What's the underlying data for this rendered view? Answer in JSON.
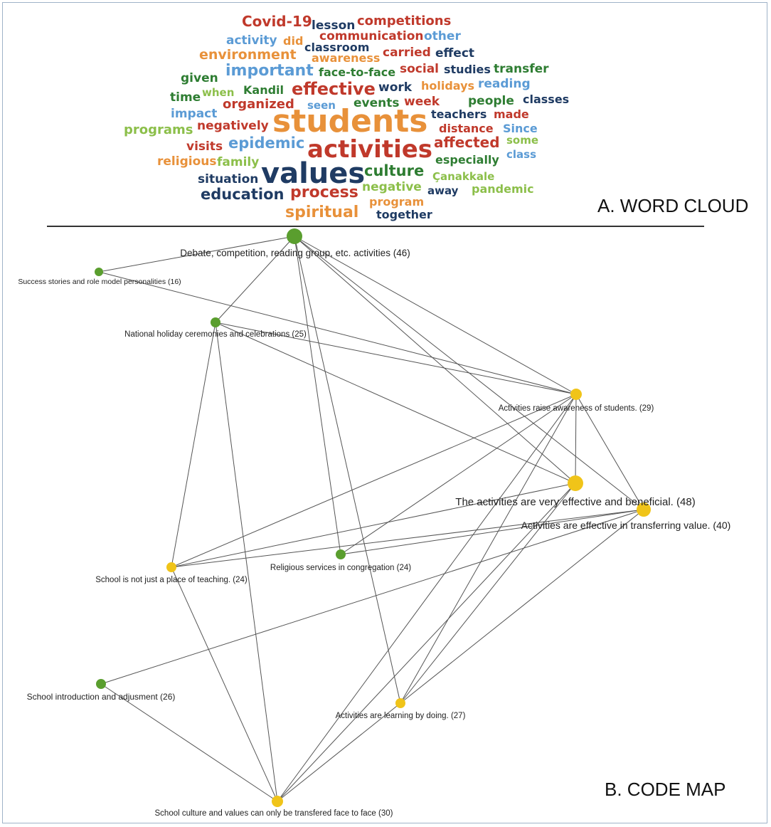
{
  "section_a_title": "A. WORD CLOUD",
  "section_b_title": "B. CODE MAP",
  "colors": {
    "red": "#c0392b",
    "orange": "#e8913a",
    "lightblue": "#5b9bd5",
    "navy": "#1f3b63",
    "green": "#2e7d32",
    "lime": "#8cbf4a",
    "node_green": "#5a9e2e",
    "node_yellow": "#f0c419",
    "edge": "#555555"
  },
  "word_cloud": [
    {
      "text": "Covid-19",
      "color": "red",
      "size": 20
    },
    {
      "text": "lesson",
      "color": "navy",
      "size": 17
    },
    {
      "text": "competitions",
      "color": "red",
      "size": 18
    },
    {
      "text": "activity",
      "color": "lightblue",
      "size": 17
    },
    {
      "text": "did",
      "color": "orange",
      "size": 16
    },
    {
      "text": "communication",
      "color": "red",
      "size": 17
    },
    {
      "text": "other",
      "color": "lightblue",
      "size": 17
    },
    {
      "text": "environment",
      "color": "orange",
      "size": 19
    },
    {
      "text": "classroom",
      "color": "navy",
      "size": 16
    },
    {
      "text": "awareness",
      "color": "orange",
      "size": 16
    },
    {
      "text": "carried",
      "color": "red",
      "size": 17
    },
    {
      "text": "effect",
      "color": "navy",
      "size": 17
    },
    {
      "text": "given",
      "color": "green",
      "size": 17
    },
    {
      "text": "important",
      "color": "lightblue",
      "size": 22
    },
    {
      "text": "face-to-face",
      "color": "green",
      "size": 16
    },
    {
      "text": "social",
      "color": "red",
      "size": 17
    },
    {
      "text": "studies",
      "color": "navy",
      "size": 16
    },
    {
      "text": "transfer",
      "color": "green",
      "size": 17
    },
    {
      "text": "time",
      "color": "green",
      "size": 17
    },
    {
      "text": "when",
      "color": "lime",
      "size": 15
    },
    {
      "text": "Kandil",
      "color": "green",
      "size": 16
    },
    {
      "text": "effective",
      "color": "red",
      "size": 24
    },
    {
      "text": "work",
      "color": "navy",
      "size": 17
    },
    {
      "text": "holidays",
      "color": "orange",
      "size": 16
    },
    {
      "text": "reading",
      "color": "lightblue",
      "size": 17
    },
    {
      "text": "seen",
      "color": "lightblue",
      "size": 15
    },
    {
      "text": "events",
      "color": "green",
      "size": 17
    },
    {
      "text": "week",
      "color": "red",
      "size": 17
    },
    {
      "text": "people",
      "color": "green",
      "size": 17
    },
    {
      "text": "classes",
      "color": "navy",
      "size": 16
    },
    {
      "text": "impact",
      "color": "lightblue",
      "size": 17
    },
    {
      "text": "organized",
      "color": "red",
      "size": 18
    },
    {
      "text": "students",
      "color": "orange",
      "size": 44
    },
    {
      "text": "teachers",
      "color": "navy",
      "size": 16
    },
    {
      "text": "made",
      "color": "red",
      "size": 16
    },
    {
      "text": "programs",
      "color": "lime",
      "size": 18
    },
    {
      "text": "negatively",
      "color": "red",
      "size": 17
    },
    {
      "text": "distance",
      "color": "red",
      "size": 16
    },
    {
      "text": "Since",
      "color": "lightblue",
      "size": 16
    },
    {
      "text": "visits",
      "color": "red",
      "size": 17
    },
    {
      "text": "epidemic",
      "color": "lightblue",
      "size": 21
    },
    {
      "text": "activities",
      "color": "red",
      "size": 34
    },
    {
      "text": "affected",
      "color": "red",
      "size": 20
    },
    {
      "text": "some",
      "color": "lime",
      "size": 15
    },
    {
      "text": "religious",
      "color": "orange",
      "size": 17
    },
    {
      "text": "family",
      "color": "lime",
      "size": 17
    },
    {
      "text": "especially",
      "color": "green",
      "size": 16
    },
    {
      "text": "class",
      "color": "lightblue",
      "size": 15
    },
    {
      "text": "situation",
      "color": "navy",
      "size": 17
    },
    {
      "text": "values",
      "color": "navy",
      "size": 40
    },
    {
      "text": "culture",
      "color": "green",
      "size": 21
    },
    {
      "text": "Çanakkale",
      "color": "lime",
      "size": 15
    },
    {
      "text": "negative",
      "color": "lime",
      "size": 17
    },
    {
      "text": "away",
      "color": "navy",
      "size": 15
    },
    {
      "text": "pandemic",
      "color": "lime",
      "size": 16
    },
    {
      "text": "education",
      "color": "navy",
      "size": 21
    },
    {
      "text": "process",
      "color": "red",
      "size": 22
    },
    {
      "text": "program",
      "color": "orange",
      "size": 16
    },
    {
      "text": "spiritual",
      "color": "orange",
      "size": 22
    },
    {
      "text": "together",
      "color": "navy",
      "size": 16
    }
  ],
  "code_map": {
    "nodes": [
      {
        "id": "debate",
        "label": "Debate, competition, reading group, etc. activities (46)",
        "color": "node_green",
        "weight": 46
      },
      {
        "id": "success",
        "label": "Success stories and role model personalities (16)",
        "color": "node_green",
        "weight": 16
      },
      {
        "id": "national",
        "label": "National holiday ceremonies and celebrations (25)",
        "color": "node_green",
        "weight": 25
      },
      {
        "id": "awareness",
        "label": "Activities raise awareness of students. (29)",
        "color": "node_yellow",
        "weight": 29
      },
      {
        "id": "effective",
        "label": "The activities are very effective and beneficial. (48)",
        "color": "node_yellow",
        "weight": 48
      },
      {
        "id": "transfer",
        "label": "Activities are effective in transferring value. (40)",
        "color": "node_yellow",
        "weight": 40
      },
      {
        "id": "school_not",
        "label": "School is not just a place of teaching. (24)",
        "color": "node_yellow",
        "weight": 24
      },
      {
        "id": "religious",
        "label": "Religious services in congregation (24)",
        "color": "node_green",
        "weight": 24
      },
      {
        "id": "introduction",
        "label": "School introduction and adjusment (26)",
        "color": "node_green",
        "weight": 26
      },
      {
        "id": "learning",
        "label": "Activities are learning by doing. (27)",
        "color": "node_yellow",
        "weight": 27
      },
      {
        "id": "culture",
        "label": "School culture and values can only be transfered face to face (30)",
        "color": "node_yellow",
        "weight": 30
      }
    ],
    "edges": [
      [
        "debate",
        "success"
      ],
      [
        "debate",
        "national"
      ],
      [
        "debate",
        "awareness"
      ],
      [
        "debate",
        "effective"
      ],
      [
        "debate",
        "transfer"
      ],
      [
        "debate",
        "learning"
      ],
      [
        "debate",
        "religious"
      ],
      [
        "success",
        "awareness"
      ],
      [
        "national",
        "awareness"
      ],
      [
        "national",
        "effective"
      ],
      [
        "national",
        "school_not"
      ],
      [
        "national",
        "culture"
      ],
      [
        "awareness",
        "effective"
      ],
      [
        "awareness",
        "transfer"
      ],
      [
        "awareness",
        "school_not"
      ],
      [
        "awareness",
        "learning"
      ],
      [
        "awareness",
        "culture"
      ],
      [
        "awareness",
        "religious"
      ],
      [
        "effective",
        "school_not"
      ],
      [
        "effective",
        "learning"
      ],
      [
        "effective",
        "culture"
      ],
      [
        "transfer",
        "religious"
      ],
      [
        "transfer",
        "school_not"
      ],
      [
        "transfer",
        "learning"
      ],
      [
        "transfer",
        "introduction"
      ],
      [
        "school_not",
        "culture"
      ],
      [
        "introduction",
        "culture"
      ],
      [
        "learning",
        "culture"
      ]
    ]
  }
}
